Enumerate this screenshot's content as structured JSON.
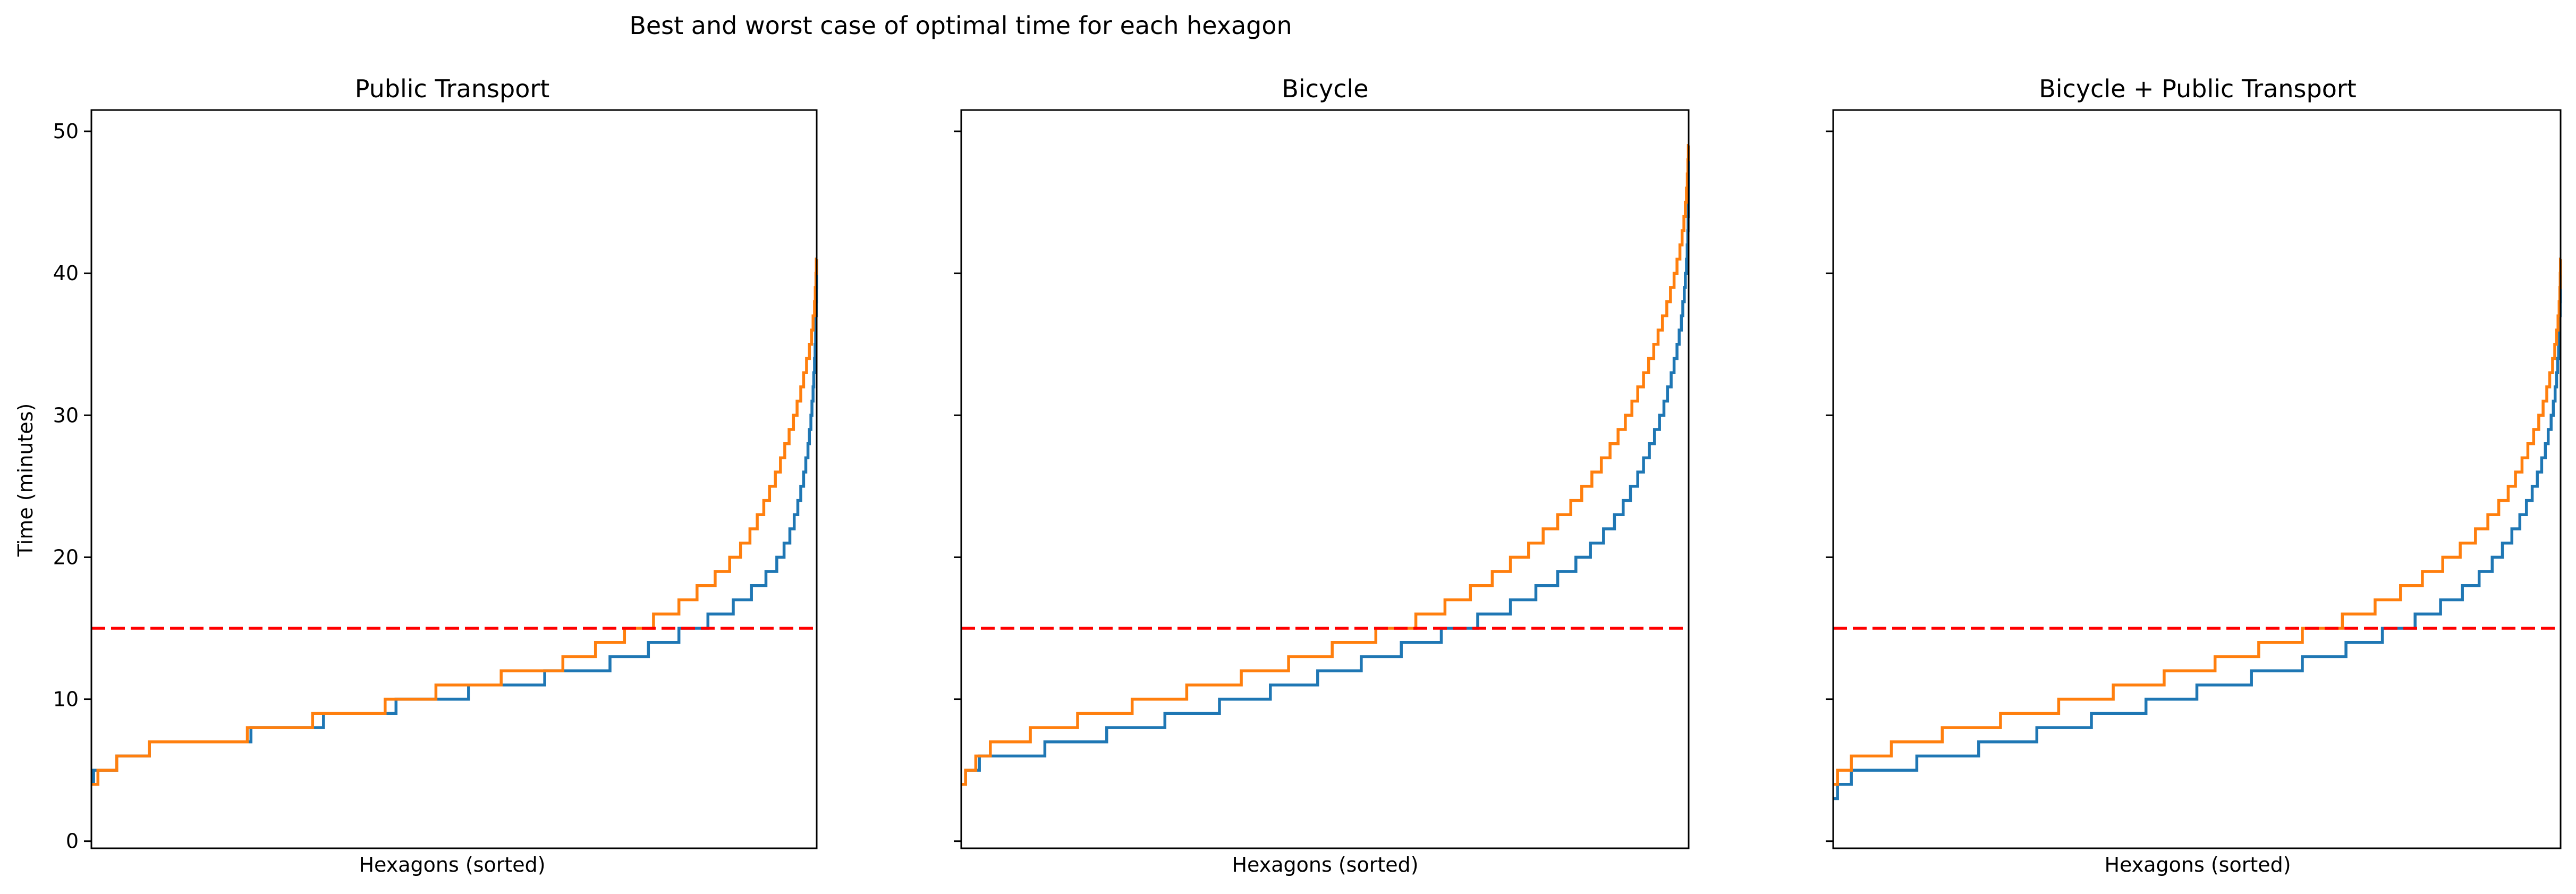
{
  "chart_data": {
    "suptitle": "Best and worst case of optimal time for each hexagon",
    "ylabel": "Time (minutes)",
    "ylim": [
      -0.5,
      51.5
    ],
    "yticks": [
      0,
      10,
      20,
      30,
      40,
      50
    ],
    "x_domain": [
      0,
      100
    ],
    "reference_line": {
      "y": 15,
      "color": "#ff0000",
      "style": "dashed"
    },
    "colors": {
      "best": "#1f77b4",
      "worst": "#ff7f0e",
      "reference": "#ff0000"
    },
    "panels": [
      {
        "type": "line",
        "title": "Public Transport",
        "xlabel": "Hexagons (sorted)",
        "series": [
          {
            "key": "best",
            "end": 41,
            "thresholds": [
              0.3,
              3.5,
              8.0,
              22.0,
              32.0,
              42.0,
              52.0,
              62.5,
              71.5,
              76.8,
              81.0,
              85.0,
              88.5,
              91.0,
              93.0,
              94.5,
              95.5,
              96.3,
              96.9,
              97.4,
              97.8,
              98.2,
              98.5,
              98.8,
              99.0,
              99.2,
              99.35,
              99.5,
              99.6,
              99.7,
              99.78,
              99.85,
              99.9,
              99.94,
              99.97,
              99.99,
              99.995
            ]
          },
          {
            "key": "worst",
            "end": 41,
            "thresholds": [
              0.9,
              3.5,
              8.0,
              21.5,
              30.5,
              40.5,
              47.5,
              56.5,
              65.0,
              69.5,
              73.5,
              77.5,
              81.0,
              83.5,
              86.0,
              88.0,
              89.5,
              90.8,
              91.8,
              92.7,
              93.5,
              94.3,
              95.0,
              95.6,
              96.2,
              96.8,
              97.3,
              97.8,
              98.2,
              98.6,
              99.0,
              99.3,
              99.5,
              99.7,
              99.8,
              99.9,
              99.95
            ]
          }
        ]
      },
      {
        "type": "line",
        "title": "Bicycle",
        "xlabel": "Hexagons (sorted)",
        "series": [
          {
            "key": "best",
            "end": 49,
            "thresholds": [
              0.6,
              2.5,
              11.5,
              20.0,
              28.0,
              35.5,
              42.5,
              49.0,
              55.0,
              60.5,
              66.0,
              71.0,
              75.5,
              79.0,
              82.0,
              84.5,
              86.5,
              88.3,
              89.8,
              91.0,
              92.0,
              93.0,
              93.8,
              94.6,
              95.3,
              96.0,
              96.6,
              97.1,
              97.6,
              98.0,
              98.4,
              98.7,
              99.0,
              99.2,
              99.4,
              99.55,
              99.7,
              99.8,
              99.88,
              99.93,
              99.96,
              99.98,
              99.99,
              99.995,
              99.998
            ]
          },
          {
            "key": "worst",
            "end": 49,
            "thresholds": [
              0.6,
              2.0,
              4.0,
              9.5,
              16.0,
              23.5,
              31.0,
              38.5,
              45.0,
              51.0,
              57.0,
              62.5,
              66.5,
              70.0,
              73.0,
              75.5,
              78.0,
              80.0,
              82.0,
              83.8,
              85.3,
              86.7,
              88.0,
              89.2,
              90.3,
              91.3,
              92.2,
              93.0,
              93.8,
              94.5,
              95.2,
              95.8,
              96.4,
              97.0,
              97.5,
              98.0,
              98.4,
              98.8,
              99.1,
              99.35,
              99.55,
              99.7,
              99.82,
              99.9,
              99.96
            ]
          }
        ]
      },
      {
        "type": "line",
        "title": "Bicycle + Public Transport",
        "xlabel": "Hexagons (sorted)",
        "series": [
          {
            "key": "best",
            "end": 41,
            "thresholds": [
              0.6,
              2.5,
              11.5,
              20.0,
              28.0,
              35.5,
              43.0,
              50.0,
              57.5,
              64.5,
              70.5,
              75.5,
              80.0,
              83.5,
              86.5,
              88.8,
              90.6,
              92.0,
              93.3,
              94.4,
              95.3,
              96.1,
              96.8,
              97.4,
              97.9,
              98.3,
              98.7,
              99.0,
              99.25,
              99.45,
              99.6,
              99.72,
              99.82,
              99.89,
              99.94,
              99.97,
              99.99,
              99.995
            ]
          },
          {
            "key": "worst",
            "end": 41,
            "thresholds": [
              0.6,
              2.5,
              8.0,
              15.0,
              23.0,
              31.0,
              38.5,
              45.5,
              52.5,
              58.5,
              64.5,
              70.0,
              74.5,
              78.0,
              81.0,
              83.8,
              86.2,
              88.3,
              90.0,
              91.5,
              92.8,
              93.8,
              94.7,
              95.5,
              96.3,
              97.0,
              97.6,
              98.1,
              98.5,
              98.9,
              99.2,
              99.45,
              99.65,
              99.8,
              99.9,
              99.95,
              99.98
            ]
          }
        ]
      }
    ]
  }
}
